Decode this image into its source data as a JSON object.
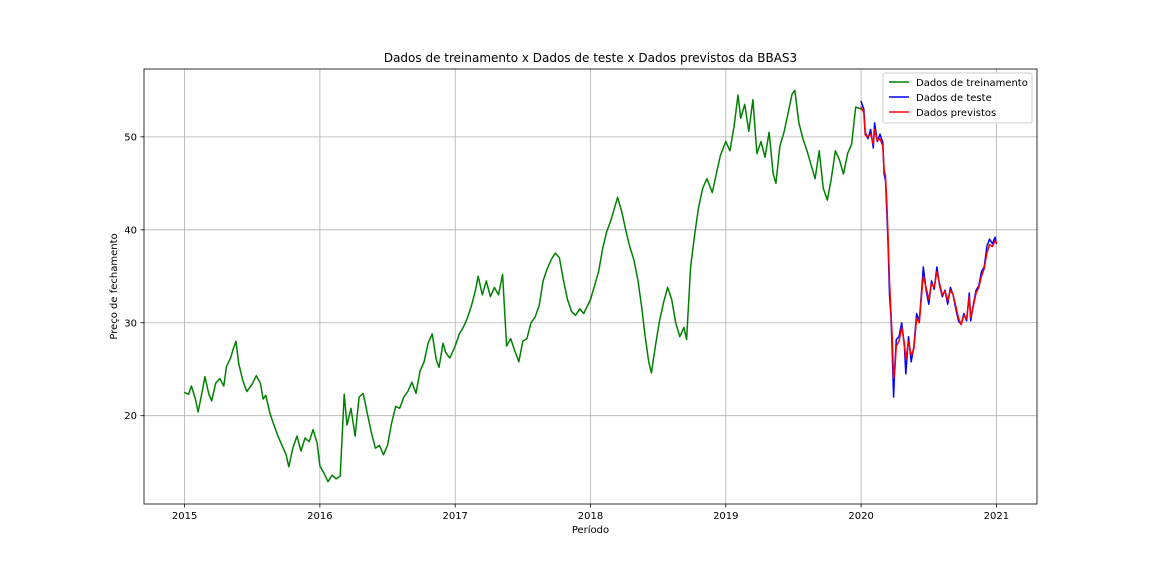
{
  "chart_data": {
    "type": "line",
    "title": "Dados de treinamento x Dados de teste x Dados previstos da BBAS3",
    "xlabel": "Período",
    "ylabel": "Preço de fechamento",
    "xlim": [
      2014.7,
      2021.3
    ],
    "ylim": [
      10.5,
      57.3
    ],
    "x_ticks": [
      2015,
      2016,
      2017,
      2018,
      2019,
      2020,
      2021
    ],
    "x_tick_labels": [
      "2015",
      "2016",
      "2017",
      "2018",
      "2019",
      "2020",
      "2021"
    ],
    "y_ticks": [
      20,
      30,
      40,
      50
    ],
    "y_tick_labels": [
      "20",
      "30",
      "40",
      "50"
    ],
    "grid": true,
    "legend_position": "top-right",
    "series": [
      {
        "name": "Dados de treinamento",
        "color": "#008000",
        "points": [
          [
            2015.0,
            22.5
          ],
          [
            2015.03,
            22.3
          ],
          [
            2015.05,
            23.2
          ],
          [
            2015.08,
            21.8
          ],
          [
            2015.1,
            20.4
          ],
          [
            2015.13,
            22.6
          ],
          [
            2015.15,
            24.2
          ],
          [
            2015.18,
            22.3
          ],
          [
            2015.2,
            21.6
          ],
          [
            2015.23,
            23.5
          ],
          [
            2015.26,
            24.0
          ],
          [
            2015.29,
            23.2
          ],
          [
            2015.31,
            25.3
          ],
          [
            2015.34,
            26.2
          ],
          [
            2015.36,
            27.2
          ],
          [
            2015.38,
            28.0
          ],
          [
            2015.4,
            25.6
          ],
          [
            2015.43,
            23.8
          ],
          [
            2015.46,
            22.6
          ],
          [
            2015.5,
            23.4
          ],
          [
            2015.53,
            24.3
          ],
          [
            2015.56,
            23.5
          ],
          [
            2015.58,
            21.8
          ],
          [
            2015.6,
            22.2
          ],
          [
            2015.63,
            20.3
          ],
          [
            2015.66,
            19.0
          ],
          [
            2015.69,
            17.8
          ],
          [
            2015.72,
            16.8
          ],
          [
            2015.75,
            15.8
          ],
          [
            2015.77,
            14.5
          ],
          [
            2015.8,
            16.5
          ],
          [
            2015.83,
            17.8
          ],
          [
            2015.86,
            16.2
          ],
          [
            2015.89,
            17.6
          ],
          [
            2015.92,
            17.2
          ],
          [
            2015.95,
            18.5
          ],
          [
            2015.98,
            17.0
          ],
          [
            2016.0,
            14.6
          ],
          [
            2016.03,
            13.8
          ],
          [
            2016.06,
            12.9
          ],
          [
            2016.09,
            13.6
          ],
          [
            2016.12,
            13.2
          ],
          [
            2016.15,
            13.5
          ],
          [
            2016.18,
            22.3
          ],
          [
            2016.2,
            19.0
          ],
          [
            2016.23,
            20.8
          ],
          [
            2016.26,
            17.8
          ],
          [
            2016.29,
            22.0
          ],
          [
            2016.32,
            22.4
          ],
          [
            2016.35,
            20.3
          ],
          [
            2016.38,
            18.2
          ],
          [
            2016.41,
            16.5
          ],
          [
            2016.44,
            16.8
          ],
          [
            2016.47,
            15.8
          ],
          [
            2016.5,
            16.8
          ],
          [
            2016.53,
            19.2
          ],
          [
            2016.56,
            21.0
          ],
          [
            2016.59,
            20.8
          ],
          [
            2016.62,
            22.0
          ],
          [
            2016.65,
            22.6
          ],
          [
            2016.68,
            23.6
          ],
          [
            2016.71,
            22.4
          ],
          [
            2016.74,
            24.8
          ],
          [
            2016.77,
            25.8
          ],
          [
            2016.8,
            27.8
          ],
          [
            2016.83,
            28.8
          ],
          [
            2016.86,
            26.0
          ],
          [
            2016.88,
            25.2
          ],
          [
            2016.91,
            27.8
          ],
          [
            2016.93,
            26.8
          ],
          [
            2016.96,
            26.2
          ],
          [
            2017.0,
            27.5
          ],
          [
            2017.03,
            28.8
          ],
          [
            2017.06,
            29.5
          ],
          [
            2017.09,
            30.5
          ],
          [
            2017.12,
            31.8
          ],
          [
            2017.15,
            33.5
          ],
          [
            2017.17,
            35.0
          ],
          [
            2017.2,
            33.0
          ],
          [
            2017.23,
            34.5
          ],
          [
            2017.26,
            32.8
          ],
          [
            2017.29,
            33.8
          ],
          [
            2017.32,
            33.0
          ],
          [
            2017.35,
            35.2
          ],
          [
            2017.38,
            27.5
          ],
          [
            2017.41,
            28.3
          ],
          [
            2017.44,
            27.0
          ],
          [
            2017.47,
            25.8
          ],
          [
            2017.5,
            28.0
          ],
          [
            2017.53,
            28.3
          ],
          [
            2017.56,
            30.0
          ],
          [
            2017.59,
            30.6
          ],
          [
            2017.62,
            31.8
          ],
          [
            2017.65,
            34.5
          ],
          [
            2017.68,
            35.8
          ],
          [
            2017.71,
            36.8
          ],
          [
            2017.74,
            37.5
          ],
          [
            2017.77,
            37.0
          ],
          [
            2017.8,
            34.6
          ],
          [
            2017.83,
            32.5
          ],
          [
            2017.86,
            31.2
          ],
          [
            2017.89,
            30.8
          ],
          [
            2017.92,
            31.5
          ],
          [
            2017.95,
            31.0
          ],
          [
            2018.0,
            32.5
          ],
          [
            2018.03,
            34.0
          ],
          [
            2018.06,
            35.5
          ],
          [
            2018.09,
            38.0
          ],
          [
            2018.12,
            39.8
          ],
          [
            2018.15,
            41.0
          ],
          [
            2018.18,
            42.5
          ],
          [
            2018.2,
            43.5
          ],
          [
            2018.23,
            42.0
          ],
          [
            2018.26,
            40.0
          ],
          [
            2018.29,
            38.2
          ],
          [
            2018.32,
            36.8
          ],
          [
            2018.35,
            34.6
          ],
          [
            2018.38,
            31.5
          ],
          [
            2018.4,
            29.0
          ],
          [
            2018.43,
            25.8
          ],
          [
            2018.45,
            24.6
          ],
          [
            2018.48,
            27.5
          ],
          [
            2018.51,
            30.2
          ],
          [
            2018.54,
            32.2
          ],
          [
            2018.57,
            33.8
          ],
          [
            2018.6,
            32.5
          ],
          [
            2018.63,
            30.0
          ],
          [
            2018.66,
            28.5
          ],
          [
            2018.69,
            29.5
          ],
          [
            2018.71,
            28.2
          ],
          [
            2018.74,
            36.0
          ],
          [
            2018.77,
            39.5
          ],
          [
            2018.8,
            42.5
          ],
          [
            2018.83,
            44.5
          ],
          [
            2018.86,
            45.5
          ],
          [
            2018.9,
            44.0
          ],
          [
            2018.93,
            46.0
          ],
          [
            2018.96,
            48.0
          ],
          [
            2019.0,
            49.5
          ],
          [
            2019.03,
            48.5
          ],
          [
            2019.06,
            51.0
          ],
          [
            2019.09,
            54.5
          ],
          [
            2019.11,
            52.0
          ],
          [
            2019.14,
            53.5
          ],
          [
            2019.17,
            50.6
          ],
          [
            2019.2,
            54.0
          ],
          [
            2019.23,
            48.2
          ],
          [
            2019.26,
            49.5
          ],
          [
            2019.29,
            47.8
          ],
          [
            2019.32,
            50.5
          ],
          [
            2019.35,
            46.0
          ],
          [
            2019.37,
            45.0
          ],
          [
            2019.4,
            49.0
          ],
          [
            2019.43,
            50.5
          ],
          [
            2019.46,
            52.5
          ],
          [
            2019.49,
            54.6
          ],
          [
            2019.51,
            55.0
          ],
          [
            2019.54,
            51.5
          ],
          [
            2019.57,
            49.8
          ],
          [
            2019.6,
            48.5
          ],
          [
            2019.63,
            47.0
          ],
          [
            2019.66,
            45.5
          ],
          [
            2019.69,
            48.5
          ],
          [
            2019.72,
            44.5
          ],
          [
            2019.75,
            43.2
          ],
          [
            2019.78,
            45.5
          ],
          [
            2019.81,
            48.5
          ],
          [
            2019.84,
            47.5
          ],
          [
            2019.87,
            46.0
          ],
          [
            2019.9,
            48.2
          ],
          [
            2019.93,
            49.2
          ],
          [
            2019.96,
            53.2
          ],
          [
            2020.0,
            53.0
          ]
        ]
      },
      {
        "name": "Dados de teste",
        "color": "#0000ff",
        "points": [
          [
            2020.0,
            53.8
          ],
          [
            2020.02,
            53.0
          ],
          [
            2020.03,
            50.5
          ],
          [
            2020.05,
            49.8
          ],
          [
            2020.07,
            50.8
          ],
          [
            2020.09,
            48.8
          ],
          [
            2020.1,
            51.5
          ],
          [
            2020.12,
            49.5
          ],
          [
            2020.14,
            50.3
          ],
          [
            2020.16,
            49.4
          ],
          [
            2020.17,
            46.0
          ],
          [
            2020.18,
            45.3
          ],
          [
            2020.19,
            42.0
          ],
          [
            2020.2,
            38.0
          ],
          [
            2020.21,
            33.0
          ],
          [
            2020.22,
            30.8
          ],
          [
            2020.23,
            27.0
          ],
          [
            2020.24,
            22.0
          ],
          [
            2020.25,
            25.5
          ],
          [
            2020.26,
            28.2
          ],
          [
            2020.28,
            28.5
          ],
          [
            2020.3,
            30.0
          ],
          [
            2020.32,
            27.5
          ],
          [
            2020.33,
            24.5
          ],
          [
            2020.35,
            28.5
          ],
          [
            2020.37,
            25.8
          ],
          [
            2020.39,
            27.5
          ],
          [
            2020.41,
            31.0
          ],
          [
            2020.43,
            30.2
          ],
          [
            2020.45,
            34.0
          ],
          [
            2020.46,
            36.0
          ],
          [
            2020.48,
            33.5
          ],
          [
            2020.5,
            32.0
          ],
          [
            2020.52,
            34.5
          ],
          [
            2020.54,
            33.6
          ],
          [
            2020.56,
            36.0
          ],
          [
            2020.58,
            34.0
          ],
          [
            2020.6,
            32.8
          ],
          [
            2020.62,
            33.5
          ],
          [
            2020.64,
            32.0
          ],
          [
            2020.66,
            33.8
          ],
          [
            2020.68,
            33.0
          ],
          [
            2020.7,
            31.5
          ],
          [
            2020.72,
            30.2
          ],
          [
            2020.74,
            29.8
          ],
          [
            2020.76,
            31.0
          ],
          [
            2020.78,
            30.2
          ],
          [
            2020.8,
            33.2
          ],
          [
            2020.81,
            30.2
          ],
          [
            2020.83,
            32.0
          ],
          [
            2020.85,
            33.5
          ],
          [
            2020.87,
            34.0
          ],
          [
            2020.89,
            35.5
          ],
          [
            2020.91,
            36.0
          ],
          [
            2020.93,
            38.2
          ],
          [
            2020.95,
            39.0
          ],
          [
            2020.97,
            38.5
          ],
          [
            2020.99,
            39.2
          ],
          [
            2021.0,
            38.5
          ]
        ]
      },
      {
        "name": "Dados previstos",
        "color": "#ff0000",
        "points": [
          [
            2020.0,
            53.2
          ],
          [
            2020.02,
            52.6
          ],
          [
            2020.03,
            50.2
          ],
          [
            2020.05,
            50.0
          ],
          [
            2020.07,
            50.3
          ],
          [
            2020.09,
            49.2
          ],
          [
            2020.1,
            50.8
          ],
          [
            2020.12,
            49.6
          ],
          [
            2020.14,
            49.8
          ],
          [
            2020.16,
            49.0
          ],
          [
            2020.17,
            46.5
          ],
          [
            2020.18,
            45.8
          ],
          [
            2020.19,
            43.0
          ],
          [
            2020.2,
            39.0
          ],
          [
            2020.21,
            34.5
          ],
          [
            2020.22,
            31.2
          ],
          [
            2020.23,
            28.5
          ],
          [
            2020.24,
            24.0
          ],
          [
            2020.25,
            25.0
          ],
          [
            2020.26,
            27.5
          ],
          [
            2020.28,
            28.0
          ],
          [
            2020.3,
            29.5
          ],
          [
            2020.32,
            27.8
          ],
          [
            2020.33,
            26.0
          ],
          [
            2020.35,
            28.0
          ],
          [
            2020.37,
            26.5
          ],
          [
            2020.39,
            27.2
          ],
          [
            2020.41,
            30.5
          ],
          [
            2020.43,
            30.0
          ],
          [
            2020.45,
            33.5
          ],
          [
            2020.46,
            35.0
          ],
          [
            2020.48,
            33.8
          ],
          [
            2020.5,
            32.5
          ],
          [
            2020.52,
            34.2
          ],
          [
            2020.54,
            33.8
          ],
          [
            2020.56,
            35.5
          ],
          [
            2020.58,
            34.2
          ],
          [
            2020.6,
            33.0
          ],
          [
            2020.62,
            33.4
          ],
          [
            2020.64,
            32.4
          ],
          [
            2020.66,
            33.5
          ],
          [
            2020.68,
            33.0
          ],
          [
            2020.7,
            31.8
          ],
          [
            2020.72,
            30.5
          ],
          [
            2020.74,
            29.8
          ],
          [
            2020.76,
            30.8
          ],
          [
            2020.78,
            30.4
          ],
          [
            2020.8,
            32.8
          ],
          [
            2020.81,
            30.6
          ],
          [
            2020.83,
            31.8
          ],
          [
            2020.85,
            33.2
          ],
          [
            2020.87,
            33.8
          ],
          [
            2020.89,
            35.0
          ],
          [
            2020.91,
            35.8
          ],
          [
            2020.93,
            37.5
          ],
          [
            2020.95,
            38.4
          ],
          [
            2020.97,
            38.2
          ],
          [
            2020.99,
            38.8
          ],
          [
            2021.0,
            38.6
          ]
        ]
      }
    ]
  }
}
